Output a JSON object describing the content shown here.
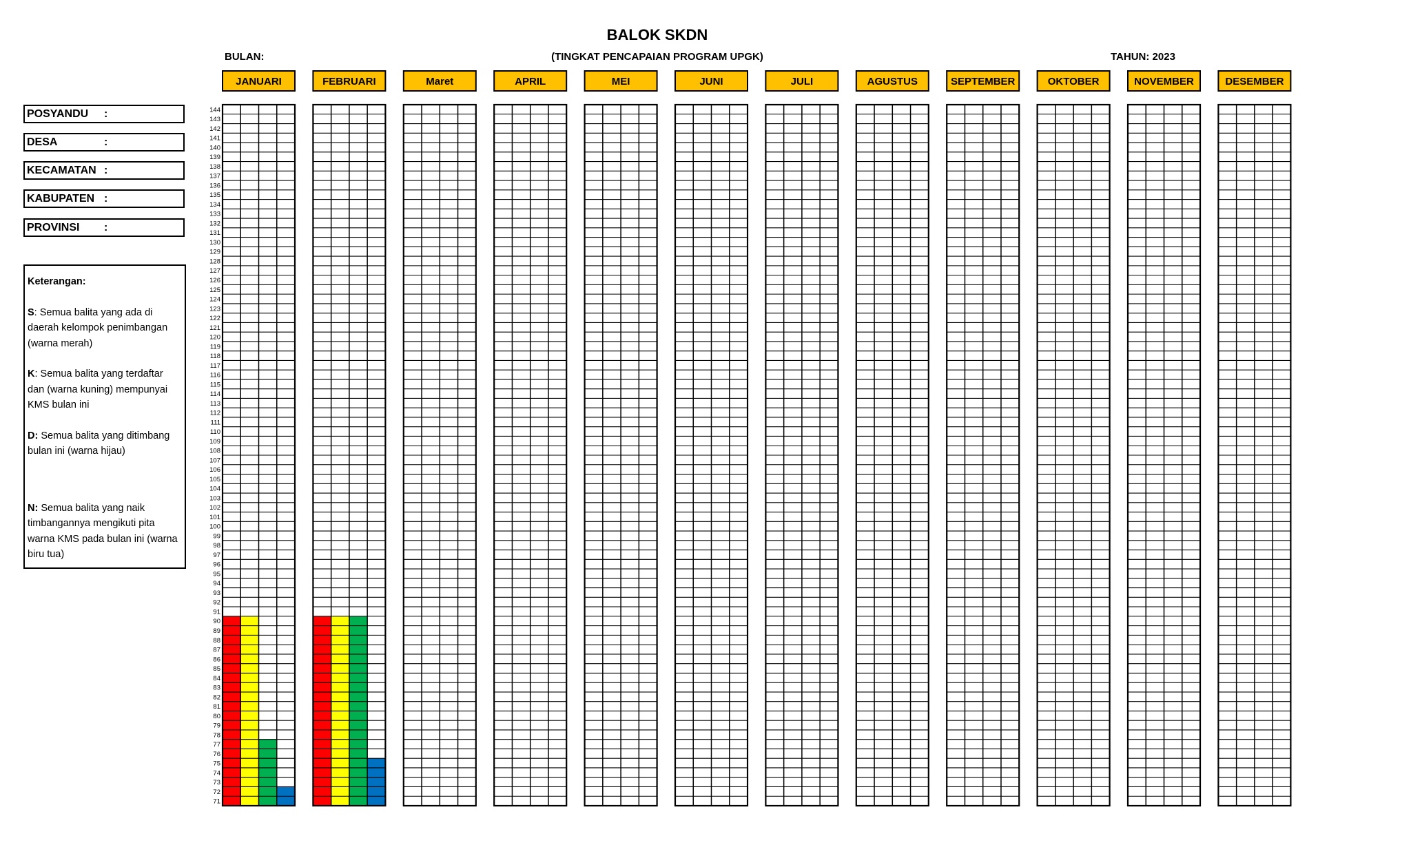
{
  "header": {
    "title": "BALOK SKDN",
    "bulan_label": "BULAN:",
    "subtitle": "(TINGKAT PENCAPAIAN PROGRAM UPGK)",
    "tahun_label": "TAHUN: 2023"
  },
  "info_fields": [
    {
      "label": "POSYANDU",
      "sep": ":"
    },
    {
      "label": "DESA",
      "sep": ":"
    },
    {
      "label": "KECAMATAN",
      "sep": ":"
    },
    {
      "label": "KABUPATEN",
      "sep": ":"
    },
    {
      "label": "PROVINSI",
      "sep": ":"
    }
  ],
  "legend": {
    "title": "Keterangan:",
    "items": [
      {
        "key": "S",
        "text": ": Semua balita yang ada di daerah kelompok penimbangan (warna merah)"
      },
      {
        "key": "K",
        "text": ": Semua balita yang terdaftar dan (warna kuning) mempunyai KMS bulan ini"
      },
      {
        "key": "D:",
        "text": " Semua balita yang ditimbang bulan ini (warna hijau)"
      },
      {
        "key": "N:",
        "text": " Semua balita yang naik timbangannya mengikuti pita warna KMS pada bulan ini (warna biru tua)"
      }
    ]
  },
  "colors": {
    "month_header": "#FFC000",
    "S": "#FF0000",
    "K": "#FFFF00",
    "D": "#00B050",
    "N": "#0070C0"
  },
  "chart_data": {
    "type": "bar",
    "categories": [
      "JANUARI",
      "FEBRUARI",
      "Maret",
      "APRIL",
      "MEI",
      "JUNI",
      "JULI",
      "AGUSTUS",
      "SEPTEMBER",
      "OKTOBER",
      "NOVEMBER",
      "DESEMBER"
    ],
    "series": [
      {
        "key": "S",
        "values": [
          90,
          90,
          null,
          null,
          null,
          null,
          null,
          null,
          null,
          null,
          null,
          null
        ]
      },
      {
        "key": "K",
        "values": [
          90,
          90,
          null,
          null,
          null,
          null,
          null,
          null,
          null,
          null,
          null,
          null
        ]
      },
      {
        "key": "D",
        "values": [
          77,
          90,
          null,
          null,
          null,
          null,
          null,
          null,
          null,
          null,
          null,
          null
        ]
      },
      {
        "key": "N",
        "values": [
          72,
          75,
          null,
          null,
          null,
          null,
          null,
          null,
          null,
          null,
          null,
          null
        ]
      }
    ],
    "ylim": [
      71,
      144
    ],
    "grid": true,
    "legend": "left"
  }
}
